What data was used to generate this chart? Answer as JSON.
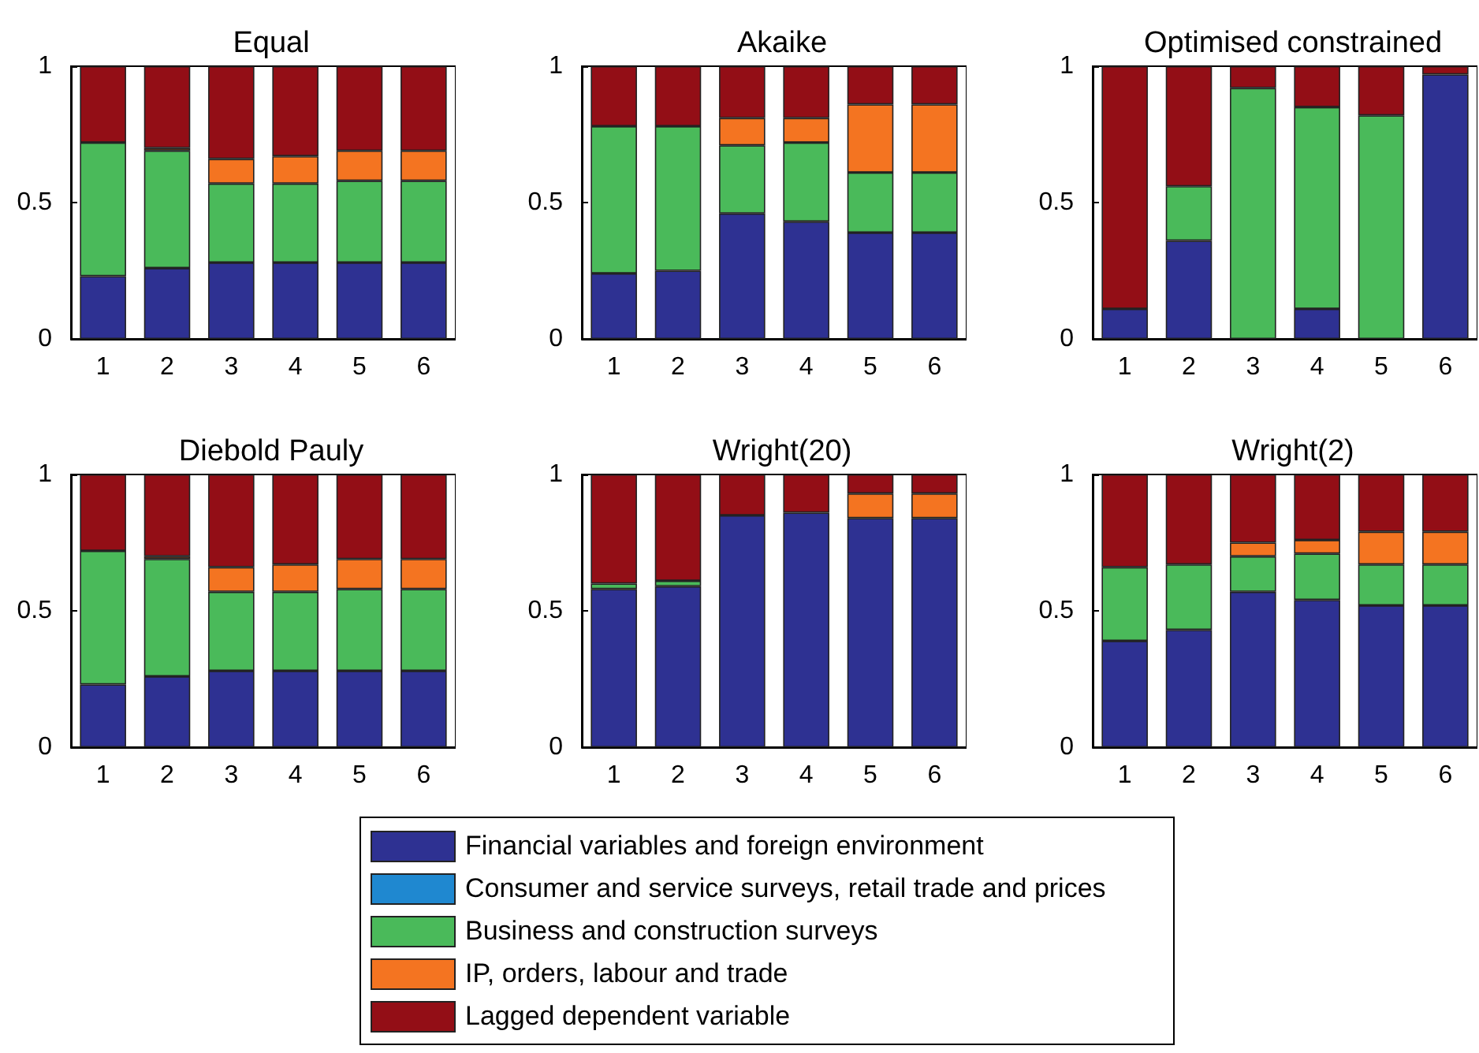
{
  "chart_data": [
    {
      "type": "bar",
      "title": "Equal",
      "categories": [
        "1",
        "2",
        "3",
        "4",
        "5",
        "6"
      ],
      "stacked": true,
      "ylim": [
        0,
        1
      ],
      "yticks": [
        0,
        0.5,
        1
      ],
      "grid": false,
      "legend": "bottom",
      "series": [
        {
          "name": "Financial variables and foreign environment",
          "color": "#2e3192",
          "values": [
            0.23,
            0.26,
            0.28,
            0.28,
            0.28,
            0.28
          ]
        },
        {
          "name": "Consumer and service surveys, retail trade and prices",
          "color": "#1f88d0",
          "values": [
            0,
            0,
            0,
            0,
            0,
            0
          ]
        },
        {
          "name": "Business and construction surveys",
          "color": "#4aba5a",
          "values": [
            0.49,
            0.43,
            0.29,
            0.29,
            0.3,
            0.3
          ]
        },
        {
          "name": "IP, orders, labour and trade",
          "color": "#f47421",
          "values": [
            0,
            0.01,
            0.09,
            0.1,
            0.11,
            0.11
          ]
        },
        {
          "name": "Lagged dependent variable",
          "color": "#930e16",
          "values": [
            0.28,
            0.3,
            0.34,
            0.33,
            0.31,
            0.31
          ]
        }
      ]
    },
    {
      "type": "bar",
      "title": "Akaike",
      "categories": [
        "1",
        "2",
        "3",
        "4",
        "5",
        "6"
      ],
      "stacked": true,
      "ylim": [
        0,
        1
      ],
      "yticks": [
        0,
        0.5,
        1
      ],
      "grid": false,
      "series": [
        {
          "color": "#2e3192",
          "values": [
            0.24,
            0.25,
            0.46,
            0.43,
            0.39,
            0.39
          ]
        },
        {
          "color": "#1f88d0",
          "values": [
            0,
            0,
            0,
            0,
            0,
            0
          ]
        },
        {
          "color": "#4aba5a",
          "values": [
            0.54,
            0.53,
            0.25,
            0.29,
            0.22,
            0.22
          ]
        },
        {
          "color": "#f47421",
          "values": [
            0,
            0,
            0.1,
            0.09,
            0.25,
            0.25
          ]
        },
        {
          "color": "#930e16",
          "values": [
            0.22,
            0.22,
            0.19,
            0.19,
            0.14,
            0.14
          ]
        }
      ]
    },
    {
      "type": "bar",
      "title": "Optimised constrained",
      "categories": [
        "1",
        "2",
        "3",
        "4",
        "5",
        "6"
      ],
      "stacked": true,
      "ylim": [
        0,
        1
      ],
      "yticks": [
        0,
        0.5,
        1
      ],
      "grid": false,
      "series": [
        {
          "color": "#2e3192",
          "values": [
            0.11,
            0.36,
            0,
            0.11,
            0,
            0.97
          ]
        },
        {
          "color": "#1f88d0",
          "values": [
            0,
            0,
            0,
            0,
            0,
            0
          ]
        },
        {
          "color": "#4aba5a",
          "values": [
            0,
            0.2,
            0.92,
            0.74,
            0.82,
            0
          ]
        },
        {
          "color": "#f47421",
          "values": [
            0,
            0,
            0,
            0,
            0,
            0
          ]
        },
        {
          "color": "#930e16",
          "values": [
            0.89,
            0.44,
            0.08,
            0.15,
            0.18,
            0.03
          ]
        }
      ]
    },
    {
      "type": "bar",
      "title": "Diebold Pauly",
      "categories": [
        "1",
        "2",
        "3",
        "4",
        "5",
        "6"
      ],
      "stacked": true,
      "ylim": [
        0,
        1
      ],
      "yticks": [
        0,
        0.5,
        1
      ],
      "grid": false,
      "series": [
        {
          "color": "#2e3192",
          "values": [
            0.23,
            0.26,
            0.28,
            0.28,
            0.28,
            0.28
          ]
        },
        {
          "color": "#1f88d0",
          "values": [
            0,
            0,
            0,
            0,
            0,
            0
          ]
        },
        {
          "color": "#4aba5a",
          "values": [
            0.49,
            0.43,
            0.29,
            0.29,
            0.3,
            0.3
          ]
        },
        {
          "color": "#f47421",
          "values": [
            0,
            0.01,
            0.09,
            0.1,
            0.11,
            0.11
          ]
        },
        {
          "color": "#930e16",
          "values": [
            0.28,
            0.3,
            0.34,
            0.33,
            0.31,
            0.31
          ]
        }
      ]
    },
    {
      "type": "bar",
      "title": "Wright(20)",
      "categories": [
        "1",
        "2",
        "3",
        "4",
        "5",
        "6"
      ],
      "stacked": true,
      "ylim": [
        0,
        1
      ],
      "yticks": [
        0,
        0.5,
        1
      ],
      "grid": false,
      "series": [
        {
          "color": "#2e3192",
          "values": [
            0.58,
            0.59,
            0.85,
            0.86,
            0.84,
            0.84
          ]
        },
        {
          "color": "#1f88d0",
          "values": [
            0,
            0,
            0,
            0,
            0,
            0
          ]
        },
        {
          "color": "#4aba5a",
          "values": [
            0.02,
            0.02,
            0,
            0,
            0,
            0
          ]
        },
        {
          "color": "#f47421",
          "values": [
            0,
            0,
            0,
            0,
            0.09,
            0.09
          ]
        },
        {
          "color": "#930e16",
          "values": [
            0.4,
            0.39,
            0.15,
            0.14,
            0.07,
            0.07
          ]
        }
      ]
    },
    {
      "type": "bar",
      "title": "Wright(2)",
      "categories": [
        "1",
        "2",
        "3",
        "4",
        "5",
        "6"
      ],
      "stacked": true,
      "ylim": [
        0,
        1
      ],
      "yticks": [
        0,
        0.5,
        1
      ],
      "grid": false,
      "series": [
        {
          "color": "#2e3192",
          "values": [
            0.39,
            0.43,
            0.57,
            0.54,
            0.52,
            0.52
          ]
        },
        {
          "color": "#1f88d0",
          "values": [
            0,
            0,
            0,
            0,
            0,
            0
          ]
        },
        {
          "color": "#4aba5a",
          "values": [
            0.27,
            0.24,
            0.13,
            0.17,
            0.15,
            0.15
          ]
        },
        {
          "color": "#f47421",
          "values": [
            0,
            0,
            0.05,
            0.05,
            0.12,
            0.12
          ]
        },
        {
          "color": "#930e16",
          "values": [
            0.34,
            0.33,
            0.25,
            0.24,
            0.21,
            0.21
          ]
        }
      ]
    }
  ]
}
